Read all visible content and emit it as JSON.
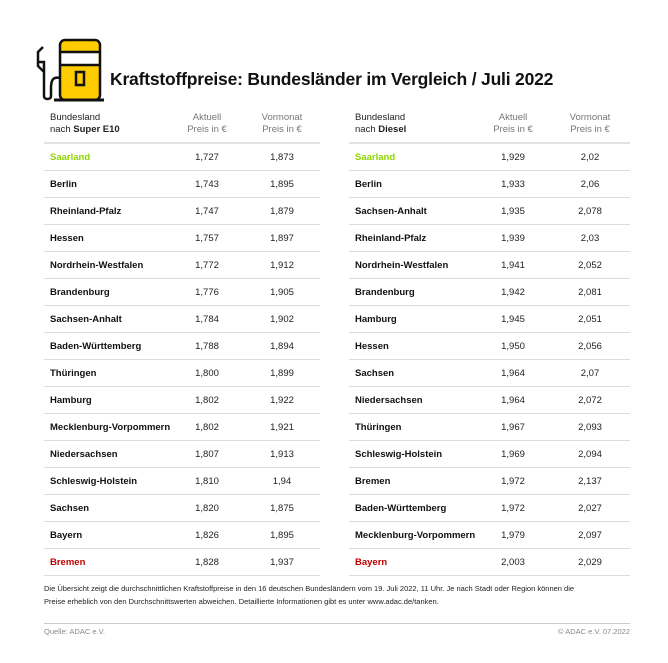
{
  "title": "Kraftstoffpreise: Bundesländer im Vergleich / Juli 2022",
  "colors": {
    "accent": "#ffcc00",
    "best": "#8fd400",
    "worst": "#c00000"
  },
  "icon": "fuel-pump-icon",
  "tables": [
    {
      "header": {
        "name_line1": "Bundesland",
        "name_prefix": "nach ",
        "fuel": "Super E10",
        "current_line1": "Aktuell",
        "current_line2": "Preis in €",
        "prev_line1": "Vormonat",
        "prev_line2": "Preis in €"
      },
      "rows": [
        {
          "name": "Saarland",
          "current": "1,727",
          "prev": "1,873",
          "status": "best"
        },
        {
          "name": "Berlin",
          "current": "1,743",
          "prev": "1,895"
        },
        {
          "name": "Rheinland-Pfalz",
          "current": "1,747",
          "prev": "1,879"
        },
        {
          "name": "Hessen",
          "current": "1,757",
          "prev": "1,897"
        },
        {
          "name": "Nordrhein-Westfalen",
          "current": "1,772",
          "prev": "1,912"
        },
        {
          "name": "Brandenburg",
          "current": "1,776",
          "prev": "1,905"
        },
        {
          "name": "Sachsen-Anhalt",
          "current": "1,784",
          "prev": "1,902"
        },
        {
          "name": "Baden-Württemberg",
          "current": "1,788",
          "prev": "1,894"
        },
        {
          "name": "Thüringen",
          "current": "1,800",
          "prev": "1,899"
        },
        {
          "name": "Hamburg",
          "current": "1,802",
          "prev": "1,922"
        },
        {
          "name": "Mecklenburg-Vorpommern",
          "current": "1,802",
          "prev": "1,921"
        },
        {
          "name": "Niedersachsen",
          "current": "1,807",
          "prev": "1,913"
        },
        {
          "name": "Schleswig-Holstein",
          "current": "1,810",
          "prev": "1,94"
        },
        {
          "name": "Sachsen",
          "current": "1,820",
          "prev": "1,875"
        },
        {
          "name": "Bayern",
          "current": "1,826",
          "prev": "1,895"
        },
        {
          "name": "Bremen",
          "current": "1,828",
          "prev": "1,937",
          "status": "worst"
        }
      ]
    },
    {
      "header": {
        "name_line1": "Bundesland",
        "name_prefix": "nach ",
        "fuel": "Diesel",
        "current_line1": "Aktuell",
        "current_line2": "Preis in €",
        "prev_line1": "Vormonat",
        "prev_line2": "Preis in €"
      },
      "rows": [
        {
          "name": "Saarland",
          "current": "1,929",
          "prev": "2,02",
          "status": "best"
        },
        {
          "name": "Berlin",
          "current": "1,933",
          "prev": "2,06"
        },
        {
          "name": "Sachsen-Anhalt",
          "current": "1,935",
          "prev": "2,078"
        },
        {
          "name": "Rheinland-Pfalz",
          "current": "1,939",
          "prev": "2,03"
        },
        {
          "name": "Nordrhein-Westfalen",
          "current": "1,941",
          "prev": "2,052"
        },
        {
          "name": "Brandenburg",
          "current": "1,942",
          "prev": "2,081"
        },
        {
          "name": "Hamburg",
          "current": "1,945",
          "prev": "2,051"
        },
        {
          "name": "Hessen",
          "current": "1,950",
          "prev": "2,056"
        },
        {
          "name": "Sachsen",
          "current": "1,964",
          "prev": "2,07"
        },
        {
          "name": "Niedersachsen",
          "current": "1,964",
          "prev": "2,072"
        },
        {
          "name": "Thüringen",
          "current": "1,967",
          "prev": "2,093"
        },
        {
          "name": "Schleswig-Holstein",
          "current": "1,969",
          "prev": "2,094"
        },
        {
          "name": "Bremen",
          "current": "1,972",
          "prev": "2,137"
        },
        {
          "name": "Baden-Württemberg",
          "current": "1,972",
          "prev": "2,027"
        },
        {
          "name": "Mecklenburg-Vorpommern",
          "current": "1,979",
          "prev": "2,097"
        },
        {
          "name": "Bayern",
          "current": "2,003",
          "prev": "2,029",
          "status": "worst"
        }
      ]
    }
  ],
  "footnote_line1": "Die Übersicht zeigt die durchschnittlichen Kraftstoffpreise in den 16 deutschen Bundesländern vom 19. Juli 2022, 11 Uhr. Je nach Stadt oder Region können die",
  "footnote_line2": "Preise erheblich von den Durchschnittswerten abweichen. Detaillierte Informationen gibt es unter www.adac.de/tanken.",
  "source": "Quelle: ADAC e.V.",
  "copyright": "© ADAC e.V. 07.2022"
}
